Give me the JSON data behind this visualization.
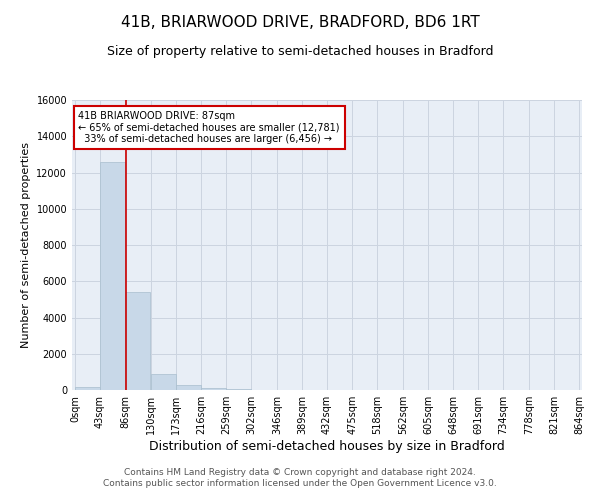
{
  "title": "41B, BRIARWOOD DRIVE, BRADFORD, BD6 1RT",
  "subtitle": "Size of property relative to semi-detached houses in Bradford",
  "xlabel": "Distribution of semi-detached houses by size in Bradford",
  "ylabel": "Number of semi-detached properties",
  "footer1": "Contains HM Land Registry data © Crown copyright and database right 2024.",
  "footer2": "Contains public sector information licensed under the Open Government Licence v3.0.",
  "property_size": 87,
  "annotation_title": "41B BRIARWOOD DRIVE: 87sqm",
  "annotation_line1": "← 65% of semi-detached houses are smaller (12,781)",
  "annotation_line2": "  33% of semi-detached houses are larger (6,456) →",
  "bar_edges": [
    0,
    43,
    86,
    130,
    173,
    216,
    259,
    302,
    346,
    389,
    432,
    475,
    518,
    562,
    605,
    648,
    691,
    734,
    778,
    821,
    864
  ],
  "bar_heights": [
    150,
    12600,
    5400,
    900,
    280,
    100,
    80,
    0,
    0,
    0,
    0,
    0,
    0,
    0,
    0,
    0,
    0,
    0,
    0,
    0
  ],
  "bar_color": "#c8d8e8",
  "bar_edge_color": "#a8bece",
  "red_line_color": "#cc0000",
  "annotation_box_color": "#cc0000",
  "grid_color": "#ccd4e0",
  "background_color": "#e8eef6",
  "ylim": [
    0,
    16000
  ],
  "yticks": [
    0,
    2000,
    4000,
    6000,
    8000,
    10000,
    12000,
    14000,
    16000
  ],
  "title_fontsize": 11,
  "subtitle_fontsize": 9,
  "xlabel_fontsize": 9,
  "ylabel_fontsize": 8,
  "tick_fontsize": 7,
  "footer_fontsize": 6.5,
  "annotation_fontsize": 7
}
